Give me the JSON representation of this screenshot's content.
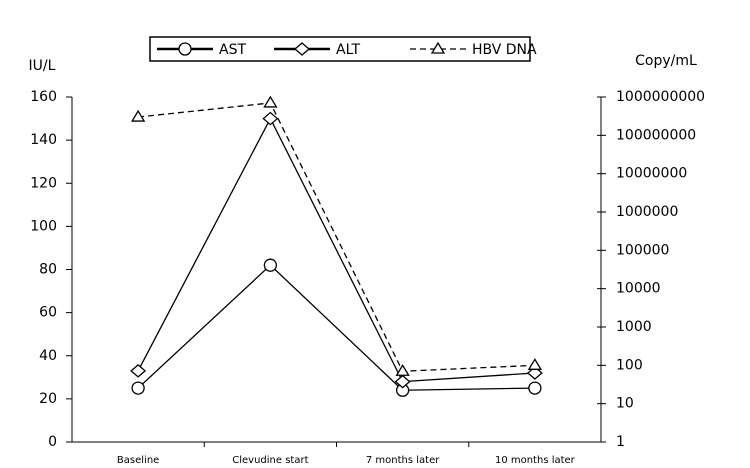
{
  "chart_data": {
    "type": "line",
    "ylabel": "IU/L",
    "y2label": "Copy/mL",
    "categories": [
      "Baseline",
      "Clevudine start",
      "7 months later",
      "10 months later"
    ],
    "series": [
      {
        "name": "AST",
        "color": "#000000",
        "marker": "circle",
        "dashed": false,
        "values": [
          25,
          82,
          24,
          25
        ]
      },
      {
        "name": "ALT",
        "color": "#000000",
        "marker": "diamond",
        "dashed": false,
        "values": [
          33,
          150,
          28,
          32
        ]
      },
      {
        "name": "HBV DNA",
        "color": "#000000",
        "marker": "triangle",
        "dashed": true,
        "axis": "y2",
        "values": [
          300000000,
          700000000,
          70,
          100
        ]
      }
    ],
    "ylim": [
      0,
      160
    ],
    "yticks": [
      0,
      20,
      40,
      60,
      80,
      100,
      120,
      140,
      160
    ],
    "y2lim": [
      1,
      1000000000
    ],
    "y2log": true,
    "y2ticks": [
      1,
      10,
      100,
      1000,
      10000,
      100000,
      1000000,
      10000000,
      100000000,
      1000000000
    ],
    "legend": "top"
  }
}
